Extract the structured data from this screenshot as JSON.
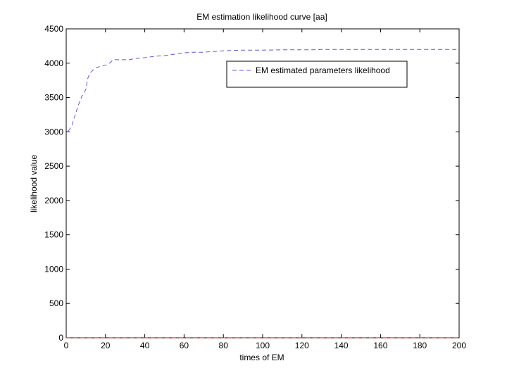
{
  "chart_data": {
    "type": "line",
    "title": "EM estimation likelihood curve [aa]",
    "xlabel": "times of EM",
    "ylabel": "likelihood value",
    "xlim": [
      0,
      200
    ],
    "ylim": [
      0,
      4500
    ],
    "xticks": [
      0,
      20,
      40,
      60,
      80,
      100,
      120,
      140,
      160,
      180,
      200
    ],
    "yticks": [
      0,
      500,
      1000,
      1500,
      2000,
      2500,
      3000,
      3500,
      4000,
      4500
    ],
    "grid": false,
    "legend_position": "top-right",
    "series": [
      {
        "name": "EM estimated parameters likelihood",
        "color": "#5c5cd6",
        "line_style": "dashed",
        "x": [
          1,
          2,
          3,
          4,
          5,
          6,
          7,
          8,
          9,
          10,
          11,
          12,
          13,
          14,
          15,
          17,
          20,
          22,
          24,
          28,
          32,
          36,
          40,
          45,
          50,
          55,
          60,
          65,
          70,
          75,
          80,
          90,
          100,
          110,
          120,
          125,
          130,
          140,
          150,
          160,
          170,
          180,
          190,
          200
        ],
        "y": [
          3010,
          3050,
          3100,
          3200,
          3280,
          3380,
          3440,
          3520,
          3560,
          3620,
          3780,
          3850,
          3880,
          3910,
          3930,
          3950,
          3970,
          4000,
          4050,
          4050,
          4050,
          4070,
          4080,
          4100,
          4110,
          4130,
          4150,
          4160,
          4160,
          4170,
          4180,
          4190,
          4190,
          4195,
          4195,
          4195,
          4200,
          4200,
          4200,
          4200,
          4200,
          4200,
          4200,
          4200
        ]
      },
      {
        "color": "#cc0000",
        "line_style": "dashed",
        "x": [
          0,
          200
        ],
        "y": [
          0,
          0
        ]
      }
    ]
  }
}
